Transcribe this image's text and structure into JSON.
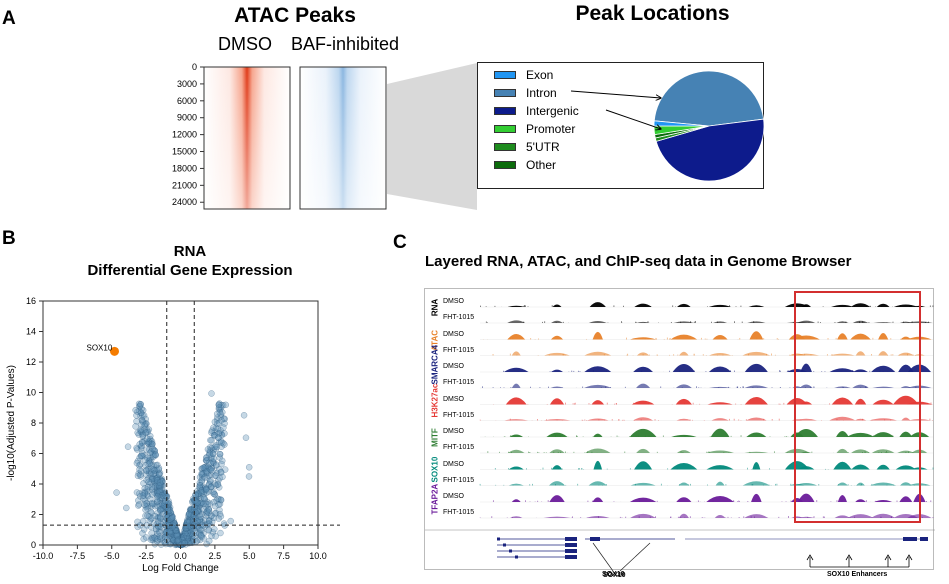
{
  "panel_a": {
    "letter": "A",
    "atac_title": "ATAC Peaks",
    "col_dmso": "DMSO",
    "col_baf": "BAF-inhibited",
    "yticks": [
      "0",
      "3000",
      "6000",
      "9000",
      "12000",
      "15000",
      "18000",
      "21000",
      "24000"
    ],
    "pie_title": "Peak Locations"
  },
  "panel_b": {
    "letter": "B",
    "title_line1": "RNA",
    "title_line2": "Differential Gene Expression",
    "highlight_label": "SOX10"
  },
  "panel_c": {
    "letter": "C",
    "title": "Layered RNA, ATAC, and ChIP-seq data in Genome Browser",
    "gene_label": "SOX10",
    "enhancer_label": "SOX10 Enhancers",
    "tracks": [
      {
        "group": "RNA",
        "color": "#000000",
        "labels": [
          "DMSO",
          "FHT-1015"
        ]
      },
      {
        "group": "ATAC",
        "color": "#e8822a",
        "labels": [
          "DMSO",
          "FHT-1015"
        ]
      },
      {
        "group": "SMARCA4",
        "color": "#1a237e",
        "labels": [
          "DMSO",
          "FHT-1015"
        ]
      },
      {
        "group": "H3K27ac",
        "color": "#e53935",
        "labels": [
          "DMSO",
          "FHT-1015"
        ]
      },
      {
        "group": "MITF",
        "color": "#2e7d32",
        "labels": [
          "DMSO",
          "FHT-1015"
        ]
      },
      {
        "group": "SOX10",
        "color": "#00897b",
        "labels": [
          "DMSO",
          "FHT-1015"
        ]
      },
      {
        "group": "TFAP2A",
        "color": "#6a1b9a",
        "labels": [
          "DMSO",
          "FHT-1015"
        ]
      }
    ]
  },
  "colors": {
    "dmso_heat": "#e8472a",
    "baf_heat": "#6fa8dc",
    "exon": "#2196f3",
    "intron": "#4682b4",
    "intergenic": "#0d1b8c",
    "promoter": "#32cd32",
    "utr5": "#1e8c1e",
    "other": "#0b6b0b",
    "scatter": "#5b8fb5",
    "sox10_point": "#f57c00",
    "highlight_box": "#d32f2f"
  },
  "chart_data": [
    {
      "type": "pie",
      "title": "Peak Locations",
      "legend": [
        "Exon",
        "Intron",
        "Intergenic",
        "Promoter",
        "5'UTR",
        "Other"
      ],
      "categories": [
        "Exon",
        "Intron",
        "Intergenic",
        "Promoter",
        "5'UTR",
        "Other"
      ],
      "values": [
        1.5,
        46.5,
        47.5,
        2.5,
        1.0,
        1.0
      ]
    },
    {
      "type": "scatter",
      "title": "RNA Differential Gene Expression",
      "xlabel": "Log Fold Change",
      "ylabel": "-log10(Adjusted P-Values)",
      "xlim": [
        -10,
        10
      ],
      "ylim": [
        0,
        16
      ],
      "xticks": [
        "-10.0",
        "-7.5",
        "-5.0",
        "-2.5",
        "0.0",
        "2.5",
        "5.0",
        "7.5",
        "10.0"
      ],
      "yticks": [
        "0",
        "2",
        "4",
        "6",
        "8",
        "10",
        "12",
        "14",
        "16"
      ],
      "thresholds": {
        "x": [
          -1,
          1
        ],
        "y": 1.3
      },
      "highlight": {
        "label": "SOX10",
        "x": -4.8,
        "y": 12.7
      }
    }
  ]
}
